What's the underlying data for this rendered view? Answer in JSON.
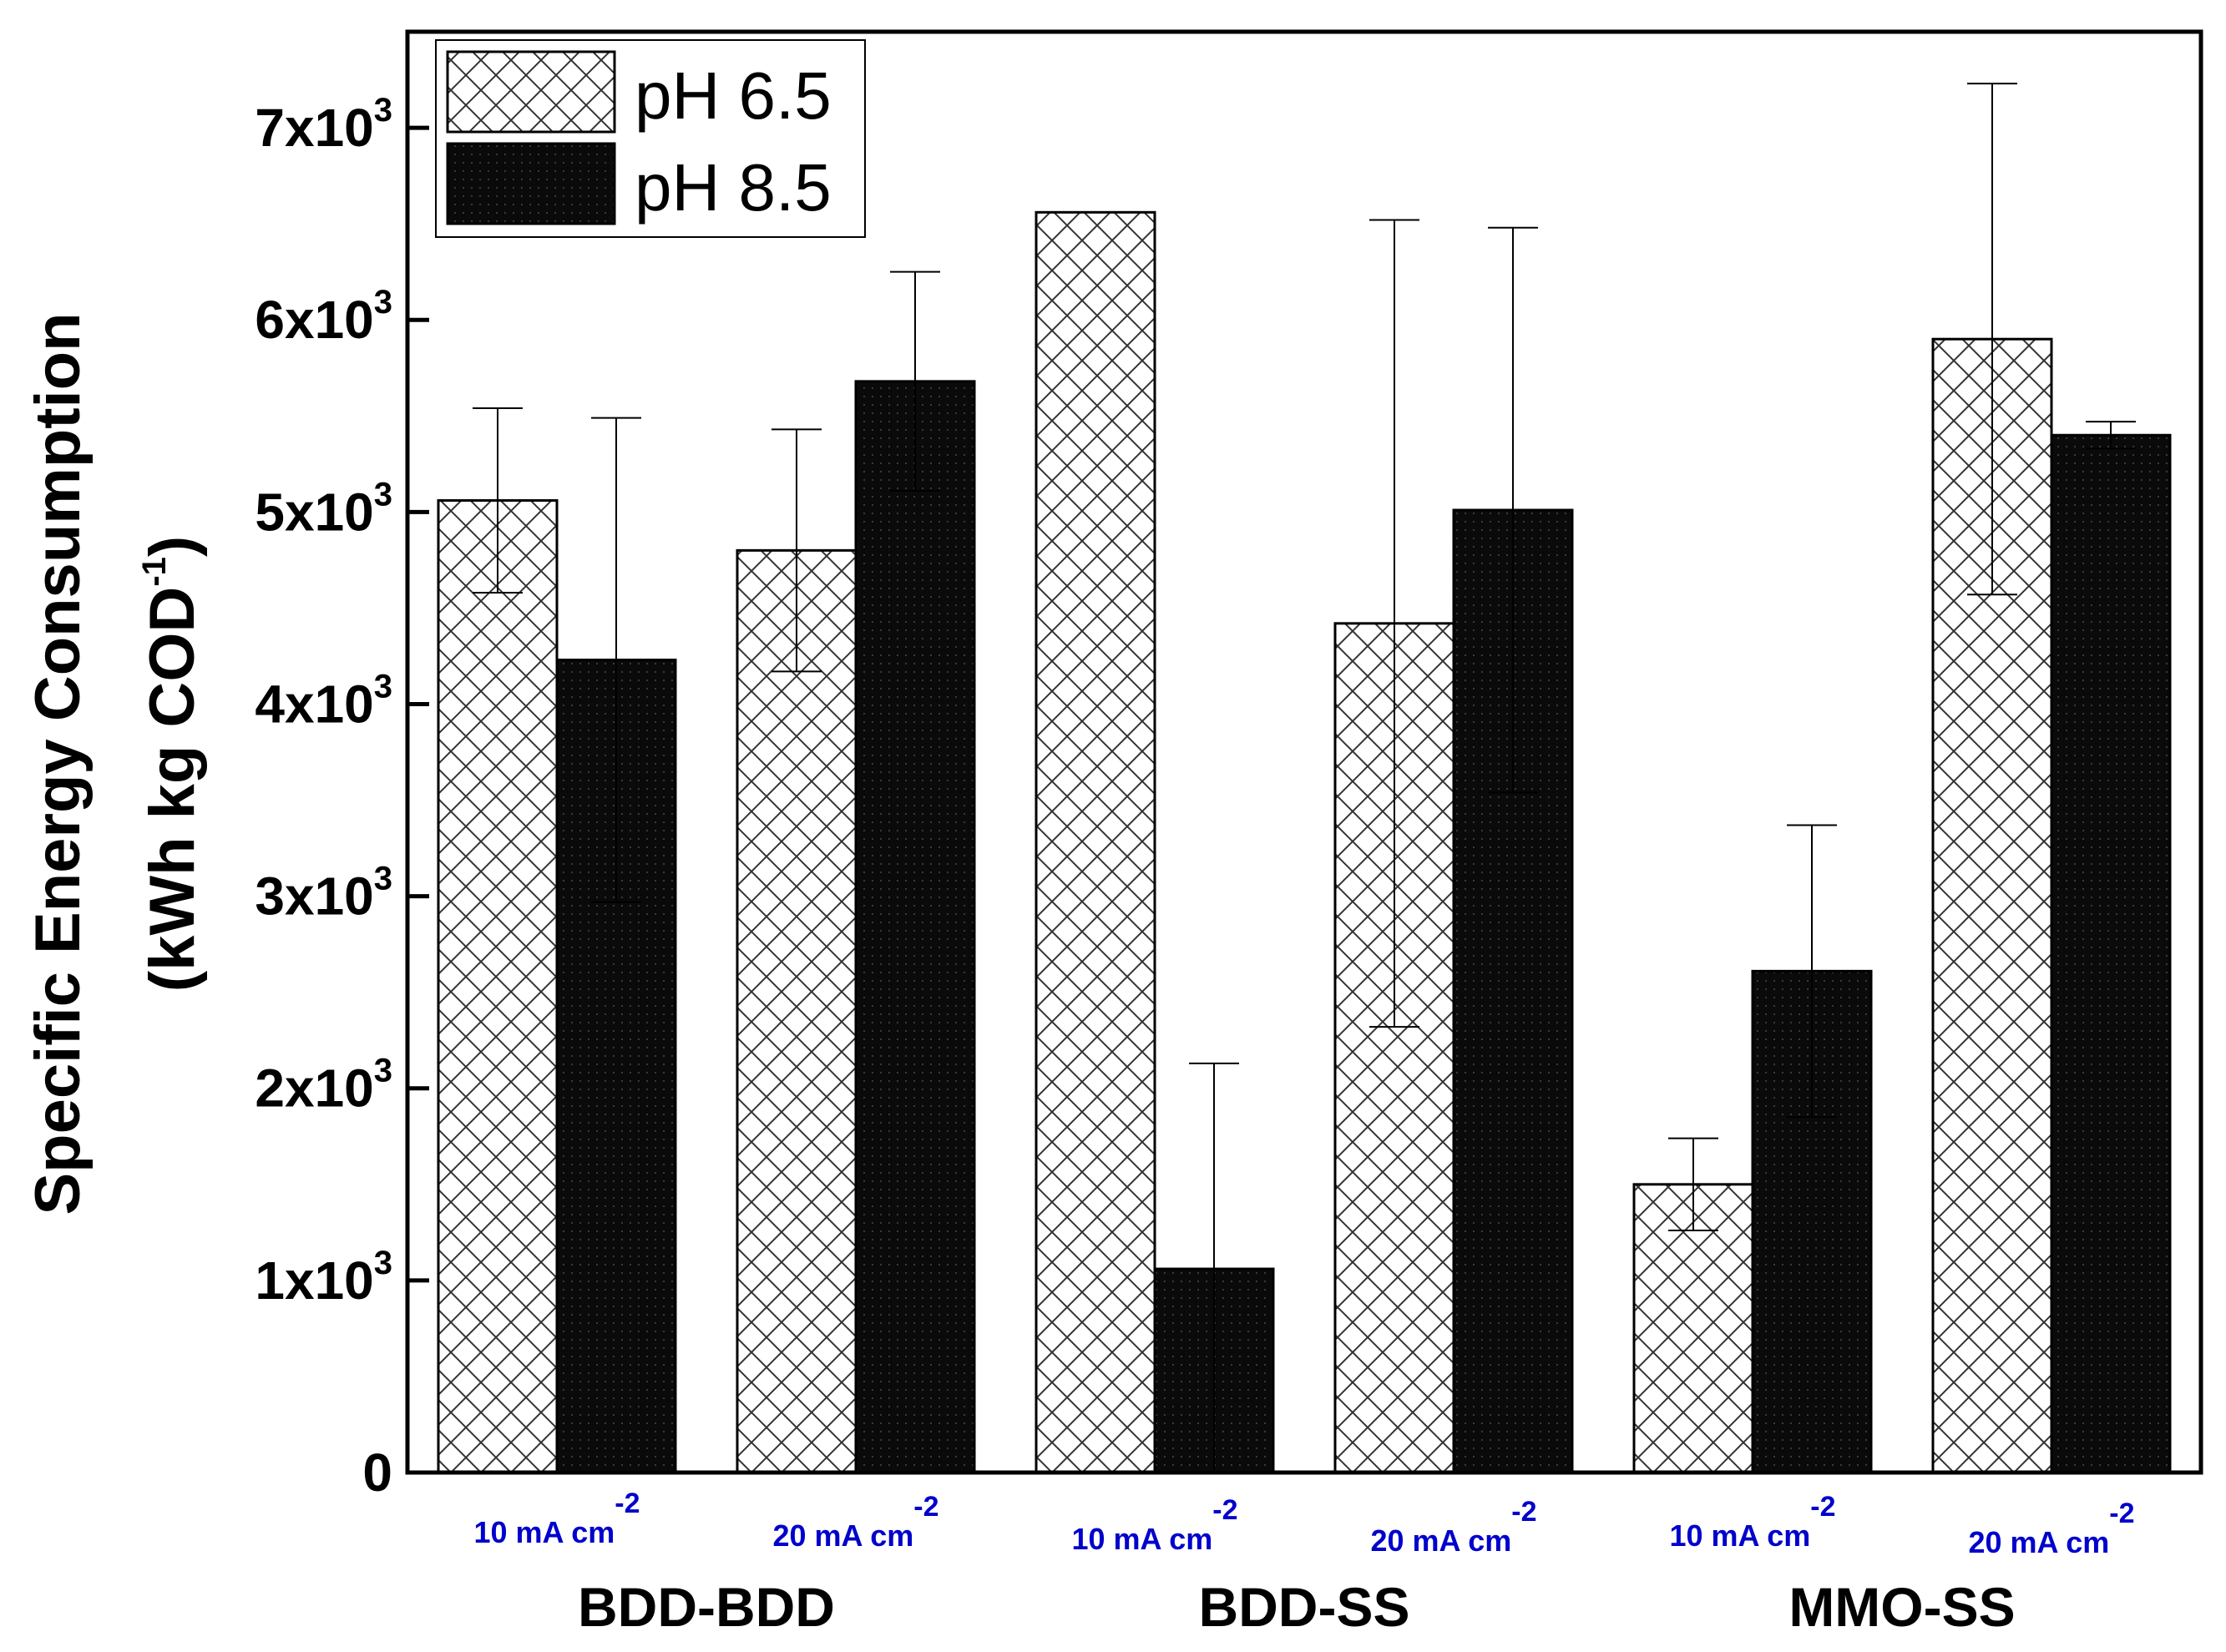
{
  "chart_data": {
    "type": "bar",
    "title": "",
    "ylabel_line1": "Specific Energy Consumption",
    "ylabel_line2_pre": "(kWh kg COD",
    "ylabel_line2_sup": "-1",
    "ylabel_line2_post": ")",
    "ylim": [
      0,
      7500
    ],
    "yticks": [
      {
        "value": 0,
        "base": "0",
        "exp": ""
      },
      {
        "value": 1000,
        "base": "1x10",
        "exp": "3"
      },
      {
        "value": 2000,
        "base": "2x10",
        "exp": "3"
      },
      {
        "value": 3000,
        "base": "3x10",
        "exp": "3"
      },
      {
        "value": 4000,
        "base": "4x10",
        "exp": "3"
      },
      {
        "value": 5000,
        "base": "5x10",
        "exp": "3"
      },
      {
        "value": 6000,
        "base": "6x10",
        "exp": "3"
      },
      {
        "value": 7000,
        "base": "7x10",
        "exp": "3"
      }
    ],
    "groups": [
      "BDD-BDD",
      "BDD-SS",
      "MMO-SS"
    ],
    "categories": [
      {
        "label": "10 mA cm",
        "sup": "-2",
        "group": "BDD-BDD"
      },
      {
        "label": "20 mA cm",
        "sup": "-2",
        "group": "BDD-BDD"
      },
      {
        "label": "10 mA cm",
        "sup": "-2",
        "group": "BDD-SS"
      },
      {
        "label": "20 mA cm",
        "sup": "-2",
        "group": "BDD-SS"
      },
      {
        "label": "10 mA cm",
        "sup": "-2",
        "group": "MMO-SS"
      },
      {
        "label": "20 mA cm",
        "sup": "-2",
        "group": "MMO-SS"
      }
    ],
    "series": [
      {
        "name": "pH 6.5",
        "pattern": "crosshatch",
        "values": [
          5060,
          4800,
          6560,
          4420,
          1500,
          5900
        ],
        "errors": [
          480,
          630,
          0,
          2100,
          240,
          1330
        ]
      },
      {
        "name": "pH 8.5",
        "pattern": "solid",
        "values": [
          4230,
          5680,
          1060,
          5010,
          2610,
          5400
        ],
        "errors": [
          1260,
          570,
          1070,
          1470,
          760,
          70
        ]
      }
    ],
    "legend_position": "top-left",
    "grid": false,
    "colors": {
      "bar_fill_dark": "#0a0a0a",
      "hatch": "#333333",
      "sub_label": "#0000cc"
    }
  }
}
